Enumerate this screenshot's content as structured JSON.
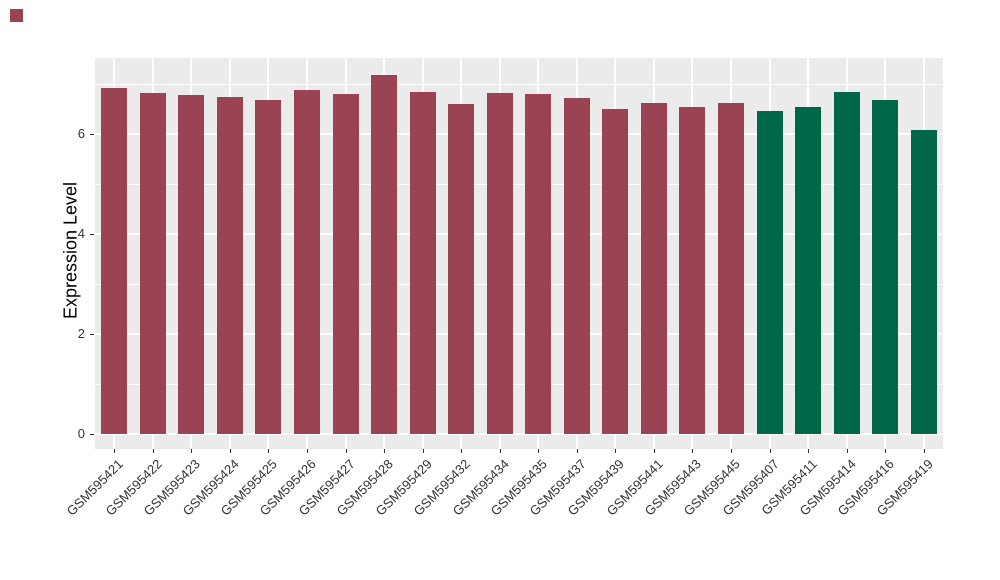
{
  "figure": {
    "background": "#FFFFFF",
    "corner_marker_color": "#9A4453"
  },
  "chart_data": {
    "type": "bar",
    "title": "",
    "xlabel": "",
    "ylabel": "Expression Level",
    "ylim": [
      0,
      7.52
    ],
    "y_major_ticks": [
      0,
      2,
      4,
      6
    ],
    "y_minor_gridlines": [
      1,
      3,
      5,
      7
    ],
    "grid": "on",
    "legend_position": "none",
    "panel_background": "#EBEBEB",
    "grid_color": "#FFFFFF",
    "axis_text_color": "#333333",
    "group_colors": {
      "red": "#9A4453",
      "green": "#016749"
    },
    "bars": [
      {
        "label": "GSM595421",
        "value": 6.92,
        "group": "red"
      },
      {
        "label": "GSM595422",
        "value": 6.83,
        "group": "red"
      },
      {
        "label": "GSM595423",
        "value": 6.78,
        "group": "red"
      },
      {
        "label": "GSM595424",
        "value": 6.74,
        "group": "red"
      },
      {
        "label": "GSM595425",
        "value": 6.69,
        "group": "red"
      },
      {
        "label": "GSM595426",
        "value": 6.88,
        "group": "red"
      },
      {
        "label": "GSM595427",
        "value": 6.81,
        "group": "red"
      },
      {
        "label": "GSM595428",
        "value": 7.18,
        "group": "red"
      },
      {
        "label": "GSM595429",
        "value": 6.84,
        "group": "red"
      },
      {
        "label": "GSM595432",
        "value": 6.61,
        "group": "red"
      },
      {
        "label": "GSM595434",
        "value": 6.82,
        "group": "red"
      },
      {
        "label": "GSM595435",
        "value": 6.8,
        "group": "red"
      },
      {
        "label": "GSM595437",
        "value": 6.72,
        "group": "red"
      },
      {
        "label": "GSM595439",
        "value": 6.51,
        "group": "red"
      },
      {
        "label": "GSM595441",
        "value": 6.62,
        "group": "red"
      },
      {
        "label": "GSM595443",
        "value": 6.54,
        "group": "red"
      },
      {
        "label": "GSM595445",
        "value": 6.62,
        "group": "red"
      },
      {
        "label": "GSM595407",
        "value": 6.46,
        "group": "green"
      },
      {
        "label": "GSM595411",
        "value": 6.54,
        "group": "green"
      },
      {
        "label": "GSM595414",
        "value": 6.84,
        "group": "green"
      },
      {
        "label": "GSM595416",
        "value": 6.68,
        "group": "green"
      },
      {
        "label": "GSM595419",
        "value": 6.09,
        "group": "green"
      }
    ]
  }
}
